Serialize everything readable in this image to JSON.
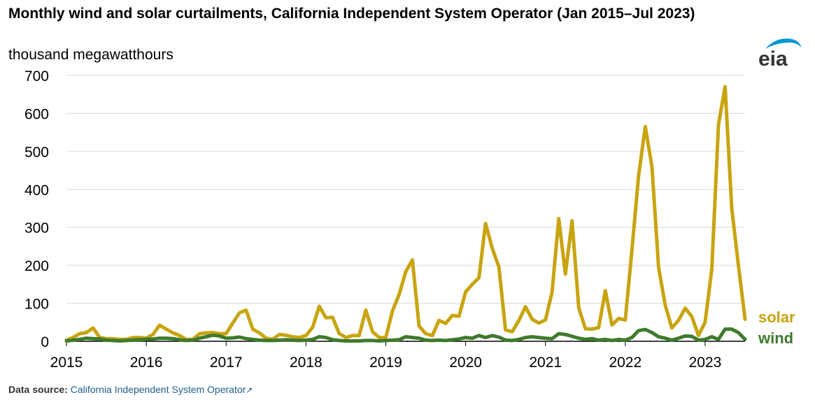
{
  "header": {
    "title": "Monthly wind and solar curtailments, California Independent System Operator (Jan 2015–Jul 2023)",
    "unit": "thousand megawatthours",
    "logo_text": "eia"
  },
  "footer": {
    "label": "Data source:",
    "source": "California Independent System Operator",
    "ext_icon": "↗"
  },
  "colors": {
    "solar": "#C8A40F",
    "wind": "#3F7A2C",
    "grid": "#D9D9D9",
    "axis": "#000000",
    "logo": "#0096D7"
  },
  "chart_data": {
    "type": "line",
    "x_start": "2015-01",
    "x_end": "2023-07",
    "frequency": "monthly",
    "ylim": [
      0,
      700
    ],
    "yticks": [
      0,
      100,
      200,
      300,
      400,
      500,
      600,
      700
    ],
    "xticks": [
      "2015",
      "2016",
      "2017",
      "2018",
      "2019",
      "2020",
      "2021",
      "2022",
      "2023"
    ],
    "grid": true,
    "series": [
      {
        "name": "solar",
        "values": [
          3,
          10,
          20,
          23,
          35,
          10,
          7,
          7,
          5,
          5,
          10,
          10,
          8,
          18,
          42,
          32,
          22,
          15,
          5,
          5,
          20,
          22,
          23,
          20,
          20,
          48,
          75,
          82,
          32,
          22,
          8,
          5,
          18,
          16,
          12,
          10,
          15,
          37,
          92,
          62,
          63,
          20,
          10,
          15,
          15,
          82,
          25,
          10,
          10,
          80,
          123,
          183,
          214,
          40,
          20,
          15,
          55,
          47,
          68,
          66,
          130,
          150,
          167,
          310,
          245,
          196,
          30,
          25,
          55,
          91,
          58,
          48,
          56,
          130,
          323,
          177,
          317,
          88,
          33,
          32,
          36,
          133,
          43,
          60,
          56,
          240,
          435,
          565,
          460,
          195,
          95,
          35,
          55,
          87,
          65,
          15,
          50,
          190,
          570,
          670,
          350,
          200,
          58
        ]
      },
      {
        "name": "wind",
        "values": [
          1,
          3,
          5,
          8,
          7,
          6,
          3,
          2,
          1,
          2,
          3,
          4,
          5,
          6,
          8,
          8,
          7,
          4,
          2,
          3,
          8,
          12,
          16,
          14,
          8,
          9,
          11,
          7,
          5,
          3,
          2,
          2,
          3,
          4,
          3,
          2,
          3,
          5,
          12,
          10,
          4,
          2,
          1,
          1,
          1,
          2,
          2,
          1,
          2,
          3,
          4,
          12,
          10,
          8,
          3,
          2,
          3,
          2,
          4,
          6,
          10,
          8,
          15,
          10,
          15,
          11,
          3,
          2,
          5,
          10,
          12,
          10,
          8,
          7,
          20,
          18,
          13,
          8,
          5,
          7,
          3,
          5,
          2,
          5,
          3,
          10,
          28,
          31,
          23,
          12,
          8,
          3,
          8,
          14,
          13,
          3,
          5,
          12,
          5,
          32,
          32,
          23,
          5
        ]
      }
    ]
  }
}
